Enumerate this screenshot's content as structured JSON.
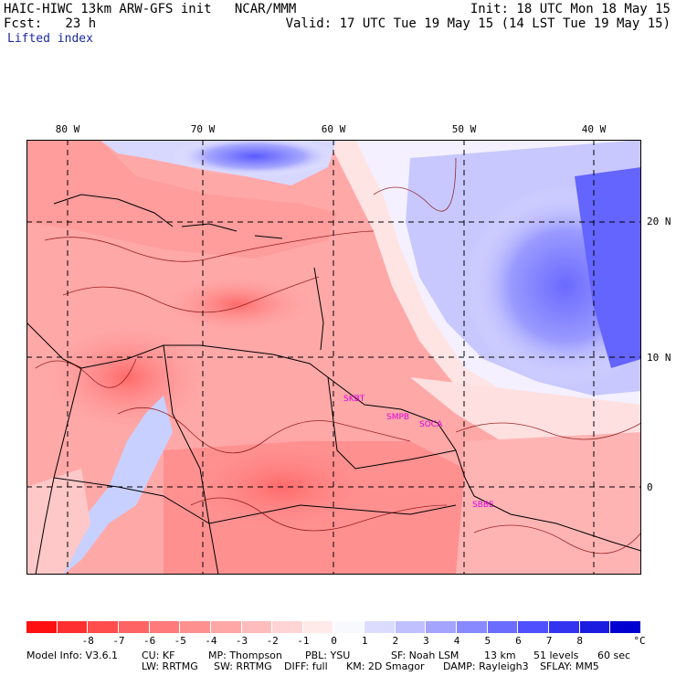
{
  "header": {
    "line1_left": "HAIC-HIWC 13km ARW-GFS init   NCAR/MMM",
    "line1_right": "Init: 18 UTC Mon 18 May 15",
    "line2_left": "Fcst:   23 h",
    "line2_right": "Valid: 17 UTC Tue 19 May 15 (14 LST Tue 19 May 15)",
    "field_name": "Lifted index"
  },
  "map": {
    "longitude_labels": [
      "80 W",
      "70 W",
      "60 W",
      "50 W",
      "40 W"
    ],
    "latitude_labels": [
      "20 N",
      "10 N",
      "0"
    ],
    "station_labels": [
      "SKBT",
      "SMPB",
      "SOCA",
      "SBBE"
    ]
  },
  "colorbar": {
    "colors": [
      "#ff1010",
      "#ff3030",
      "#ff4c4c",
      "#ff6464",
      "#ff7a7a",
      "#ff9090",
      "#ffa6a6",
      "#ffbcbc",
      "#ffd4d4",
      "#ffeaea",
      "#f8f8ff",
      "#dcdcff",
      "#c0c0ff",
      "#a4a4ff",
      "#8888ff",
      "#6c6cff",
      "#5050ff",
      "#3434f0",
      "#1c1ce0",
      "#0000d0"
    ],
    "tick_labels": [
      "-8",
      "-7",
      "-6",
      "-5",
      "-4",
      "-3",
      "-2",
      "-1",
      "0",
      "1",
      "2",
      "3",
      "4",
      "5",
      "6",
      "7",
      "8"
    ],
    "unit": "°C"
  },
  "footer": {
    "line1": {
      "model_info": "Model Info: V3.6.1",
      "cu": "CU: KF",
      "mp": "MP: Thompson",
      "pbl": "PBL: YSU",
      "sf": "SF: Noah LSM",
      "res": "13 km",
      "levels": "51 levels",
      "dt": "60 sec"
    },
    "line2": {
      "lw": "LW: RRTMG",
      "sw": "SW: RRTMG",
      "diff": "DIFF: full",
      "km": "KM: 2D Smagor",
      "damp": "DAMP: Rayleigh3",
      "sflay": "SFLAY: MM5"
    }
  }
}
